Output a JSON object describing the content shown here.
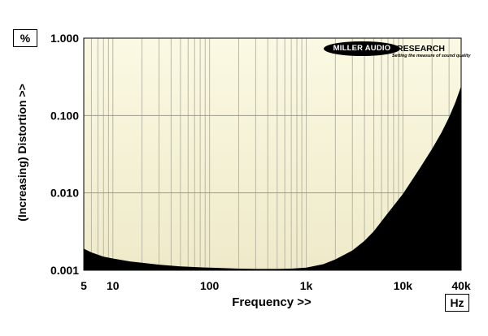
{
  "y_unit": "%",
  "x_unit": "Hz",
  "logo": {
    "name_part1": "MILLER AUDIO",
    "name_part2": "RESEARCH",
    "tagline": "Setting the measure of sound quality"
  },
  "chart_data": {
    "type": "area",
    "xlabel": "Frequency >>",
    "ylabel": "(Increasing) Distortion >>",
    "x_scale": "log",
    "y_scale": "log",
    "xlim": [
      5,
      40000
    ],
    "ylim": [
      0.001,
      1
    ],
    "x_tick_labels": [
      "5",
      "10",
      "100",
      "1k",
      "10k",
      "40k"
    ],
    "x_ticks": [
      5,
      10,
      100,
      1000,
      10000,
      40000
    ],
    "y_tick_labels": [
      "0.001",
      "0.010",
      "0.100",
      "1.000"
    ],
    "y_ticks": [
      0.001,
      0.01,
      0.1,
      1
    ],
    "grid": true,
    "colors": {
      "plot_top": "#fbf9e3",
      "plot_bottom": "#eeeac9",
      "fill": "#000000",
      "grid": "#b9b7a6"
    },
    "series": [
      {
        "x": [
          5,
          6,
          8,
          10,
          15,
          20,
          30,
          50,
          100,
          200,
          300,
          500,
          700,
          1000,
          1500,
          2000,
          3000,
          4000,
          5000,
          7000,
          10000,
          15000,
          20000,
          25000,
          30000,
          35000,
          40000
        ],
        "values": [
          0.0019,
          0.0017,
          0.0015,
          0.00142,
          0.0013,
          0.00125,
          0.00118,
          0.00112,
          0.00108,
          0.00105,
          0.00104,
          0.00104,
          0.00105,
          0.00108,
          0.0012,
          0.00138,
          0.0018,
          0.0024,
          0.0032,
          0.0055,
          0.0097,
          0.021,
          0.037,
          0.06,
          0.095,
          0.15,
          0.24
        ]
      }
    ]
  }
}
